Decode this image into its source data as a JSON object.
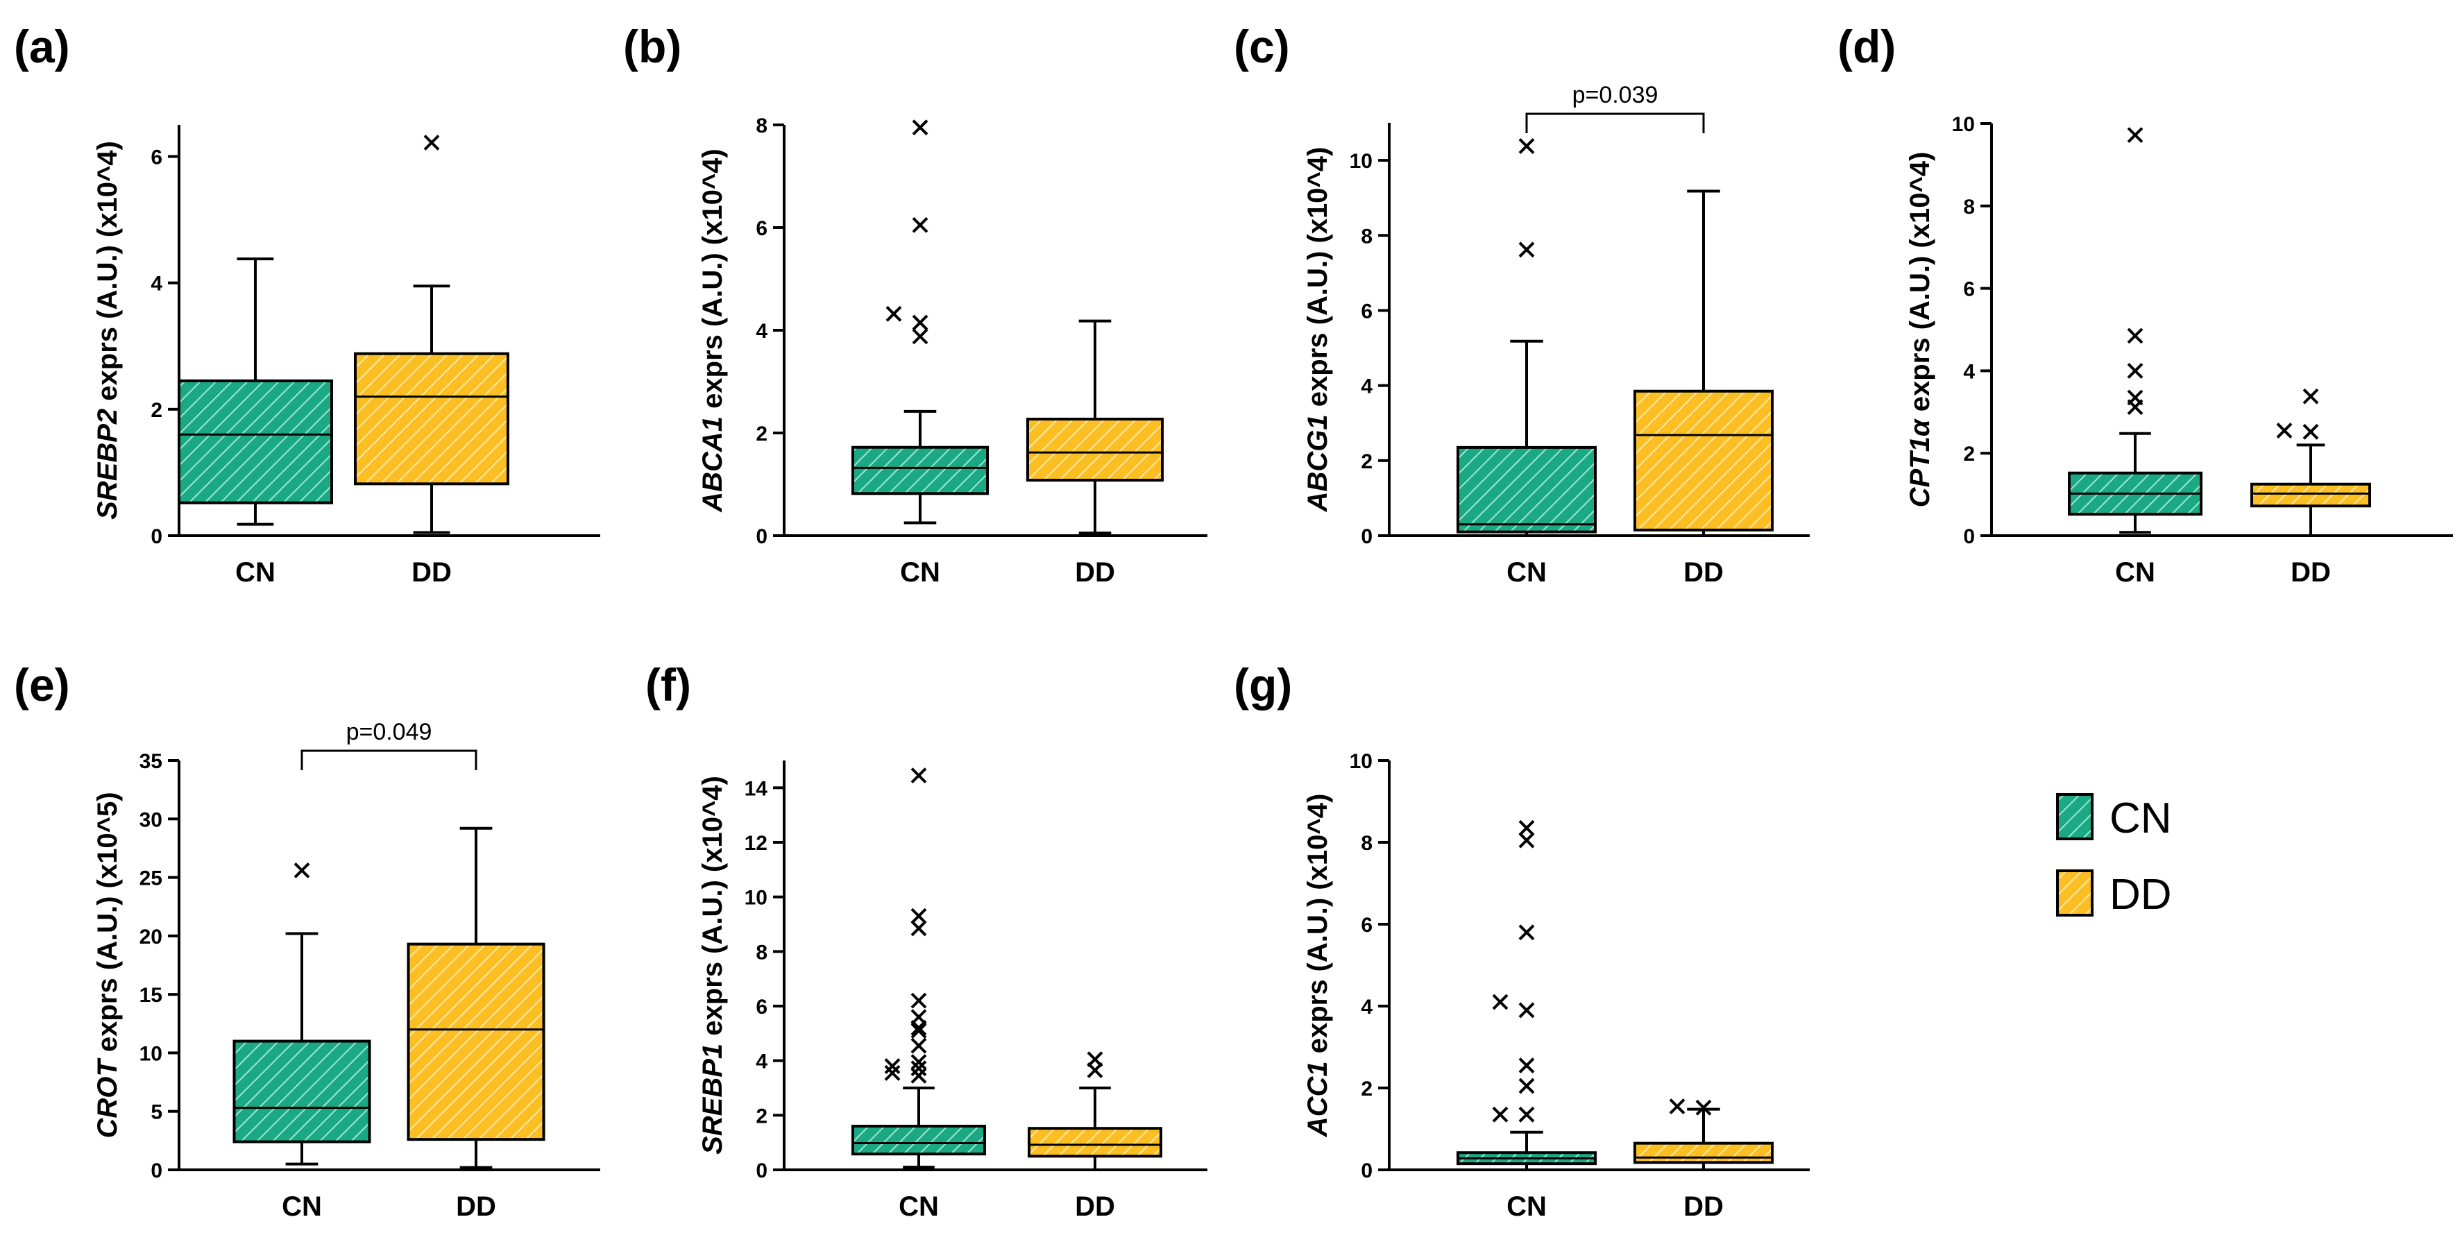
{
  "legend": {
    "items": [
      {
        "label": "CN",
        "color": "#1aa984",
        "pattern": "hatch"
      },
      {
        "label": "DD",
        "color": "#fbbf24",
        "pattern": "hatch"
      }
    ]
  },
  "chart_data": [
    {
      "type": "boxplot",
      "panel": "(a)",
      "gene": "SREBP2",
      "ylabel_rest": " exprs (A.U.) (x10^4)",
      "categories": [
        "CN",
        "DD"
      ],
      "ylim": [
        0,
        6.5
      ],
      "yticks": [
        0,
        2,
        4,
        6
      ],
      "boxes": [
        {
          "group": "CN",
          "whisker_low": 0.18,
          "q1": 0.52,
          "median": 1.6,
          "q3": 2.45,
          "whisker_high": 4.38,
          "outliers": []
        },
        {
          "group": "DD",
          "whisker_low": 0.05,
          "q1": 0.82,
          "median": 2.2,
          "q3": 2.88,
          "whisker_high": 3.95,
          "outliers": [
            6.22
          ]
        }
      ]
    },
    {
      "type": "boxplot",
      "panel": "(b)",
      "gene": "ABCA1",
      "ylabel_rest": " exprs (A.U.) (x10^4)",
      "categories": [
        "CN",
        "DD"
      ],
      "ylim": [
        0,
        8
      ],
      "yticks": [
        0,
        2,
        4,
        6,
        8
      ],
      "boxes": [
        {
          "group": "CN",
          "whisker_low": 0.25,
          "q1": 0.82,
          "median": 1.32,
          "q3": 1.72,
          "whisker_high": 2.42,
          "outliers": [
            3.88,
            4.15,
            4.32,
            6.05,
            7.95
          ]
        },
        {
          "group": "DD",
          "whisker_low": 0.05,
          "q1": 1.08,
          "median": 1.62,
          "q3": 2.27,
          "whisker_high": 4.18,
          "outliers": []
        }
      ]
    },
    {
      "type": "boxplot",
      "panel": "(c)",
      "gene": "ABCG1",
      "ylabel_rest": " exprs (A.U.) (x10^4)",
      "categories": [
        "CN",
        "DD"
      ],
      "ylim": [
        0,
        11
      ],
      "yticks": [
        0,
        2,
        4,
        6,
        8,
        10
      ],
      "significance": "p=0.039",
      "boxes": [
        {
          "group": "CN",
          "whisker_low": 0.0,
          "q1": 0.1,
          "median": 0.3,
          "q3": 2.35,
          "whisker_high": 5.18,
          "outliers": [
            7.62,
            10.38
          ]
        },
        {
          "group": "DD",
          "whisker_low": 0.0,
          "q1": 0.15,
          "median": 2.68,
          "q3": 3.85,
          "whisker_high": 9.18,
          "outliers": []
        }
      ]
    },
    {
      "type": "boxplot",
      "panel": "(d)",
      "gene": "CPT1α",
      "ylabel_rest": " exprs (A.U.) (x10^4)",
      "categories": [
        "CN",
        "DD"
      ],
      "ylim": [
        0,
        10
      ],
      "yticks": [
        0,
        2,
        4,
        6,
        8,
        10
      ],
      "boxes": [
        {
          "group": "CN",
          "whisker_low": 0.08,
          "q1": 0.52,
          "median": 1.02,
          "q3": 1.52,
          "whisker_high": 2.48,
          "outliers": [
            3.12,
            3.35,
            4.0,
            4.85,
            9.72
          ]
        },
        {
          "group": "DD",
          "whisker_low": 0.0,
          "q1": 0.72,
          "median": 1.02,
          "q3": 1.25,
          "whisker_high": 2.2,
          "outliers": [
            2.52,
            2.55,
            3.38
          ]
        }
      ]
    },
    {
      "type": "boxplot",
      "panel": "(e)",
      "gene": "CROT",
      "ylabel_rest": " exprs (A.U.) (x10^5)",
      "categories": [
        "CN",
        "DD"
      ],
      "ylim": [
        0,
        35
      ],
      "yticks": [
        0,
        5,
        10,
        15,
        20,
        25,
        30,
        35
      ],
      "significance": "p=0.049",
      "boxes": [
        {
          "group": "CN",
          "whisker_low": 0.5,
          "q1": 2.4,
          "median": 5.3,
          "q3": 11.0,
          "whisker_high": 20.2,
          "outliers": [
            25.6
          ]
        },
        {
          "group": "DD",
          "whisker_low": 0.2,
          "q1": 2.6,
          "median": 12.0,
          "q3": 19.3,
          "whisker_high": 29.2,
          "outliers": []
        }
      ]
    },
    {
      "type": "boxplot",
      "panel": "(f)",
      "gene": "SREBP1",
      "ylabel_rest": " exprs (A.U.) (x10^4)",
      "categories": [
        "CN",
        "DD"
      ],
      "ylim": [
        0,
        15
      ],
      "yticks": [
        0,
        2,
        4,
        6,
        8,
        10,
        12,
        14
      ],
      "boxes": [
        {
          "group": "CN",
          "whisker_low": 0.1,
          "q1": 0.58,
          "median": 0.98,
          "q3": 1.6,
          "whisker_high": 3.0,
          "outliers": [
            3.45,
            3.72,
            3.95,
            3.55,
            3.8,
            4.55,
            5.1,
            5.2,
            5.6,
            6.2,
            8.85,
            9.3,
            14.45
          ]
        },
        {
          "group": "DD",
          "whisker_low": 0.0,
          "q1": 0.5,
          "median": 0.92,
          "q3": 1.52,
          "whisker_high": 3.0,
          "outliers": [
            3.65,
            4.05
          ]
        }
      ]
    },
    {
      "type": "boxplot",
      "panel": "(g)",
      "gene": "ACC1",
      "ylabel_rest": " exprs (A.U.) (x10^4)",
      "categories": [
        "CN",
        "DD"
      ],
      "ylim": [
        0,
        10
      ],
      "yticks": [
        0,
        2,
        4,
        6,
        8,
        10
      ],
      "boxes": [
        {
          "group": "CN",
          "whisker_low": 0.0,
          "q1": 0.15,
          "median": 0.28,
          "q3": 0.42,
          "whisker_high": 0.92,
          "outliers": [
            1.35,
            1.35,
            2.05,
            2.55,
            3.9,
            4.1,
            5.8,
            8.05,
            8.35
          ]
        },
        {
          "group": "DD",
          "whisker_low": 0.0,
          "q1": 0.18,
          "median": 0.3,
          "q3": 0.65,
          "whisker_high": 1.48,
          "outliers": [
            1.52,
            1.55
          ]
        }
      ]
    }
  ]
}
